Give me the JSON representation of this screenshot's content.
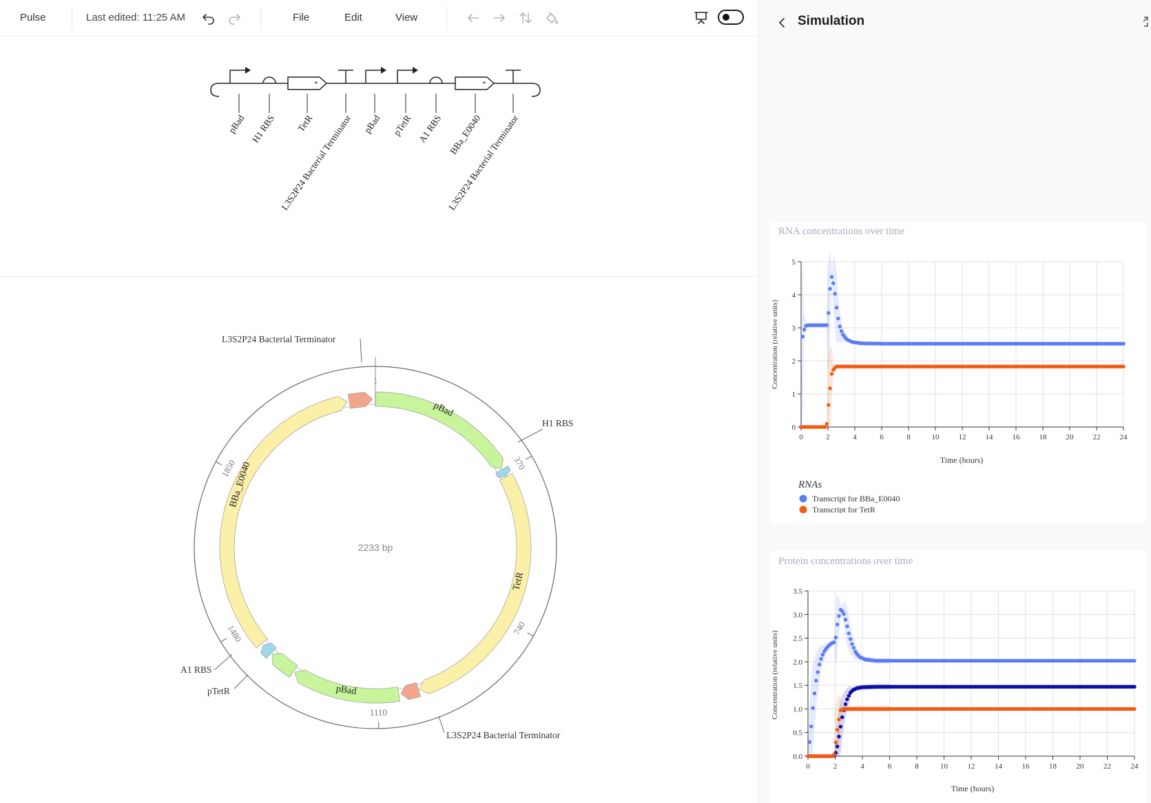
{
  "toolbar": {
    "app_name": "Pulse",
    "last_edited": "Last edited: 11:25 AM",
    "menu": [
      "File",
      "Edit",
      "View"
    ]
  },
  "icons": {
    "undo": "undo-icon",
    "redo": "redo-icon",
    "back": "arrow-left-icon",
    "forward": "arrow-right-icon",
    "sort": "sort-icon",
    "fill": "paint-bucket-icon",
    "present": "presentation-icon",
    "toggle": "toggle-switch"
  },
  "sbol": {
    "labels": [
      "pBad",
      "H1 RBS",
      "TetR",
      "L3S2P24 Bacterial Terminator",
      "pBad",
      "pTetR",
      "A1 RBS",
      "BBa_E0040",
      "L3S2P24 Bacterial Terminator"
    ]
  },
  "plasmid": {
    "length_label": "2233 bp",
    "ticks": [
      "1",
      "370",
      "740",
      "1110",
      "1480",
      "1850"
    ],
    "outer_labels": [
      "L3S2P24 Bacterial Terminator",
      "H1 RBS",
      "L3S2P24 Bacterial Terminator",
      "A1 RBS",
      "pTetR"
    ],
    "feature_labels": [
      "pBad",
      "TetR",
      "pBad",
      "BBa_E0040"
    ],
    "colors": {
      "promoter": "#c8f59c",
      "cds": "#fbf0a8",
      "terminator": "#f2a58a",
      "rbs": "#9ed8ea"
    }
  },
  "panel": {
    "title": "Simulation"
  },
  "rna_chart": {
    "title": "RNA concentrations over time",
    "xlabel": "Time (hours)",
    "ylabel": "Concentration (relative units)",
    "legend_title": "RNAs",
    "legend": [
      "Transcript for BBa_E0040",
      "Transcript for TetR"
    ],
    "x_ticks": [
      "0",
      "2",
      "4",
      "6",
      "8",
      "10",
      "12",
      "14",
      "16",
      "18",
      "20",
      "22",
      "24"
    ],
    "y_ticks": [
      "0",
      "1",
      "2",
      "3",
      "4",
      "5"
    ]
  },
  "protein_chart": {
    "title": "Protein concentrations over time",
    "xlabel": "Time (hours)",
    "ylabel": "Concentration (relative units)",
    "x_ticks": [
      "0",
      "2",
      "4",
      "6",
      "8",
      "10",
      "12",
      "14",
      "16",
      "18",
      "20",
      "22",
      "24"
    ],
    "y_ticks": [
      "0.0",
      "0.5",
      "1.0",
      "1.5",
      "2.0",
      "2.5",
      "3.0",
      "3.5"
    ]
  },
  "chart_data": [
    {
      "type": "scatter",
      "title": "RNA concentrations over time",
      "xlabel": "Time (hours)",
      "ylabel": "Concentration (relative units)",
      "xlim": [
        0,
        24
      ],
      "ylim": [
        0,
        5
      ],
      "legend_placement": "bottom-left",
      "series": [
        {
          "name": "Transcript for BBa_E0040",
          "color": "#5b7cf7",
          "x": [
            0,
            0.1,
            0.3,
            0.5,
            1,
            1.5,
            2,
            2.1,
            2.3,
            2.5,
            2.7,
            2.9,
            3.1,
            3.4,
            3.8,
            4.5,
            6,
            10,
            16,
            24
          ],
          "y": [
            0,
            2.7,
            3.05,
            3.08,
            3.08,
            3.08,
            3.08,
            4.0,
            4.6,
            4.1,
            3.4,
            3.0,
            2.8,
            2.65,
            2.57,
            2.53,
            2.52,
            2.52,
            2.52,
            2.52
          ]
        },
        {
          "name": "Transcript for TetR",
          "color": "#f35b14",
          "x": [
            0,
            1,
            1.9,
            2.1,
            2.3,
            2.6,
            3,
            4,
            8,
            12,
            16,
            20,
            24
          ],
          "y": [
            0,
            0,
            0,
            0.95,
            1.68,
            1.83,
            1.83,
            1.83,
            1.83,
            1.83,
            1.83,
            1.83,
            1.83
          ]
        }
      ]
    },
    {
      "type": "scatter",
      "title": "Protein concentrations over time",
      "xlabel": "Time (hours)",
      "ylabel": "Concentration (relative units)",
      "xlim": [
        0,
        24
      ],
      "ylim": [
        0,
        3.5
      ],
      "series": [
        {
          "color": "#5b7cf7",
          "x": [
            0,
            0.2,
            0.4,
            0.6,
            0.8,
            1.0,
            1.2,
            1.4,
            1.6,
            1.8,
            2.0,
            2.2,
            2.4,
            2.6,
            2.8,
            3.0,
            3.2,
            3.5,
            3.8,
            4.2,
            5,
            6,
            10,
            16,
            24
          ],
          "y": [
            0,
            0.5,
            1.15,
            1.6,
            1.9,
            2.1,
            2.22,
            2.3,
            2.36,
            2.4,
            2.42,
            2.88,
            3.1,
            3.05,
            2.85,
            2.6,
            2.4,
            2.2,
            2.1,
            2.05,
            2.02,
            2.02,
            2.02,
            2.02,
            2.02
          ]
        },
        {
          "color": "#0c0ca8",
          "x": [
            0,
            1,
            1.9,
            2.1,
            2.3,
            2.5,
            2.7,
            2.9,
            3.1,
            3.3,
            3.6,
            4,
            5,
            6,
            10,
            16,
            24
          ],
          "y": [
            0,
            0,
            0,
            0.1,
            0.45,
            0.8,
            1.05,
            1.22,
            1.34,
            1.4,
            1.44,
            1.46,
            1.47,
            1.47,
            1.47,
            1.47,
            1.47
          ]
        },
        {
          "color": "#f35b14",
          "x": [
            0,
            1,
            1.9,
            2.0,
            2.2,
            2.4,
            2.6,
            3,
            4,
            8,
            12,
            16,
            20,
            24
          ],
          "y": [
            0,
            0,
            0,
            0.2,
            0.65,
            0.97,
            1.0,
            1.0,
            1.0,
            1.0,
            1.0,
            1.0,
            1.0,
            1.0
          ]
        }
      ]
    }
  ]
}
